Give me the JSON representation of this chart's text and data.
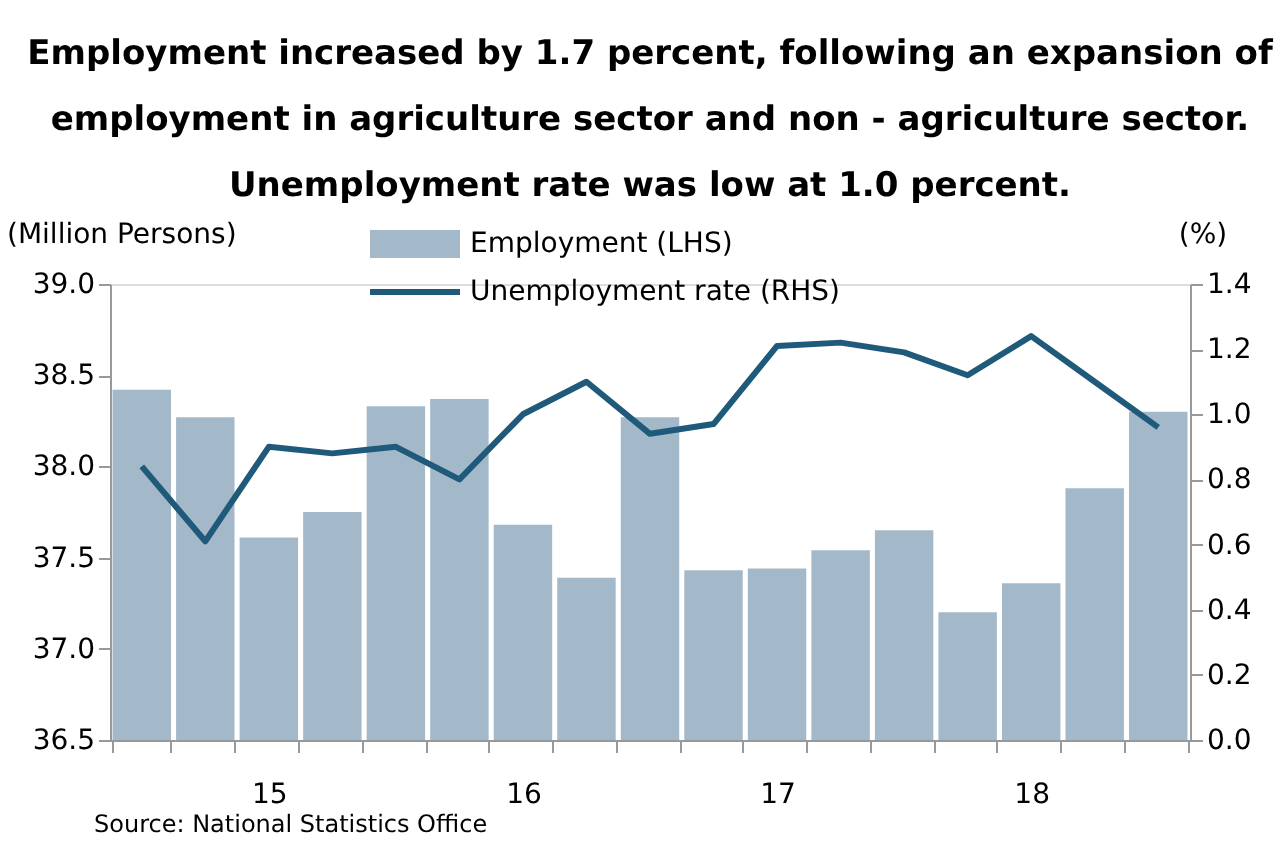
{
  "chart_data": {
    "type": "bar",
    "title": "Employment increased by 1.7 percent, following an expansion of\nemployment in agriculture sector and non - agriculture sector.\nUnemployment rate was low at 1.0 percent.",
    "ylabel": "(Million Persons)",
    "y2label": "(%)",
    "categories": [
      null,
      null,
      "15",
      null,
      null,
      null,
      "16",
      null,
      null,
      null,
      "17",
      null,
      null,
      null,
      "18",
      null,
      null
    ],
    "series": [
      {
        "name": "Employment (LHS)",
        "color": "#a3b9c9",
        "values": [
          38.42,
          38.27,
          37.61,
          37.75,
          38.33,
          38.37,
          37.68,
          37.39,
          38.27,
          37.43,
          37.44,
          37.54,
          37.65,
          37.2,
          37.36,
          37.88,
          38.3
        ]
      },
      {
        "name": "Unemployment rate (RHS)",
        "type": "line",
        "axis": "y2",
        "color": "#1f5a7a",
        "values": [
          0.84,
          0.61,
          0.9,
          0.88,
          0.9,
          0.8,
          1.0,
          1.1,
          0.94,
          0.97,
          1.21,
          1.22,
          1.19,
          1.12,
          1.24,
          1.1,
          0.96
        ]
      }
    ],
    "ylim": [
      36.5,
      39.0
    ],
    "yticks": [
      {
        "value": 36.5,
        "label": "36.5"
      },
      {
        "value": 37.0,
        "label": "37.0"
      },
      {
        "value": 37.5,
        "label": "37.5"
      },
      {
        "value": 38.0,
        "label": "38.0"
      },
      {
        "value": 38.5,
        "label": "38.5"
      },
      {
        "value": 39.0,
        "label": "39.0"
      }
    ],
    "y2lim": [
      0,
      1.4
    ],
    "y2ticks": [
      {
        "value": 0,
        "label": "0.0"
      },
      {
        "value": 0.2,
        "label": "0.2"
      },
      {
        "value": 0.4,
        "label": "0.4"
      },
      {
        "value": 0.6,
        "label": "0.6"
      },
      {
        "value": 0.8,
        "label": "0.8"
      },
      {
        "value": 1.0,
        "label": "1.0"
      },
      {
        "value": 1.2,
        "label": "1.2"
      },
      {
        "value": 1.4,
        "label": "1.4"
      }
    ],
    "grid": false,
    "legend": "top",
    "annotations": [
      "Source: National Statistics Office"
    ]
  }
}
